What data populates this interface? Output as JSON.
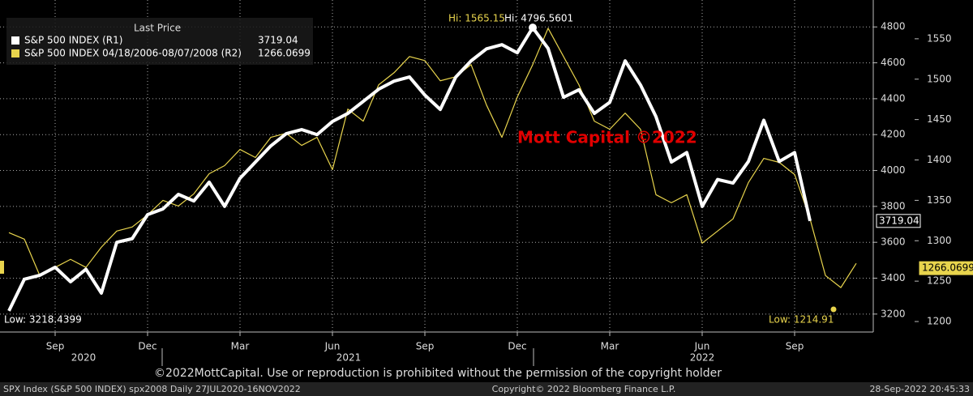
{
  "chart_data": {
    "type": "line",
    "legend_header": "Last Price",
    "categories": [
      null,
      null,
      null,
      "Sep",
      null,
      null,
      null,
      null,
      null,
      "Dec",
      null,
      null,
      null,
      null,
      null,
      "Mar",
      null,
      null,
      null,
      null,
      null,
      "Jun",
      null,
      null,
      null,
      null,
      null,
      "Sep",
      null,
      null,
      null,
      null,
      null,
      "Dec",
      null,
      null,
      null,
      null,
      null,
      "Mar",
      null,
      null,
      null,
      null,
      null,
      "Jun",
      null,
      null,
      null,
      null,
      null,
      "Sep",
      null,
      null,
      null,
      null
    ],
    "x_group_labels": [
      "2020",
      "2021",
      "2022"
    ],
    "series": [
      {
        "name": "S&P 500 INDEX  (R1)",
        "color": "#ffffff",
        "last_value": 3719.04,
        "values": [
          3218,
          3394,
          3416,
          3461,
          3380,
          3450,
          3317,
          3600,
          3620,
          3754,
          3786,
          3867,
          3830,
          3935,
          3800,
          3957,
          4047,
          4137,
          4205,
          4228,
          4200,
          4273,
          4318,
          4385,
          4453,
          4498,
          4521,
          4420,
          4340,
          4520,
          4611,
          4678,
          4701,
          4656,
          4796,
          4680,
          4408,
          4450,
          4318,
          4380,
          4611,
          4476,
          4300,
          4047,
          4100,
          3800,
          3950,
          3930,
          4050,
          4280,
          4050,
          4100,
          3719,
          null,
          null,
          null
        ]
      },
      {
        "name": "S&P 500 INDEX 04/18/2006-08/07/2008   (R2)",
        "color": "#e8d44d",
        "axis": "y2",
        "last_value": 1266.0699,
        "values": [
          1310,
          1302,
          1257,
          1267,
          1277,
          1267,
          1292,
          1312,
          1317,
          1332,
          1350,
          1343,
          1358,
          1383,
          1393,
          1413,
          1403,
          1428,
          1433,
          1418,
          1428,
          1388,
          1463,
          1448,
          1493,
          1508,
          1528,
          1523,
          1498,
          1503,
          1518,
          1468,
          1428,
          1478,
          1518,
          1563,
          1528,
          1493,
          1448,
          1438,
          1458,
          1438,
          1357,
          1347,
          1357,
          1297,
          1312,
          1327,
          1372,
          1402,
          1397,
          1382,
          1327,
          1257,
          1242,
          1272
        ]
      }
    ],
    "ylim": [
      3100,
      4950
    ],
    "yticks": [
      3200,
      3400,
      3600,
      3800,
      4000,
      4200,
      4400,
      4600,
      4800
    ],
    "y2lim": [
      1187,
      1598
    ],
    "y2ticks": [
      1200,
      1250,
      1300,
      1350,
      1400,
      1450,
      1500,
      1550
    ],
    "grid": true,
    "annotations": {
      "hi_r2": "Hi: 1565.15",
      "hi_r1": "Hi: 4796.5601",
      "low_r1": "Low: 3218.4399",
      "low_r2": "Low: 1214.91",
      "watermark": "Mott Capital ©2022"
    }
  },
  "notice": "©2022MottCapital. Use or reproduction is prohibited without the permission of the copyright holder",
  "footer": {
    "left": "SPX Index (S&P 500 INDEX) spx2008  Daily 27JUL2020-16NOV2022",
    "center": "Copyright© 2022 Bloomberg Finance L.P.",
    "right": "28-Sep-2022 20:45:33"
  }
}
